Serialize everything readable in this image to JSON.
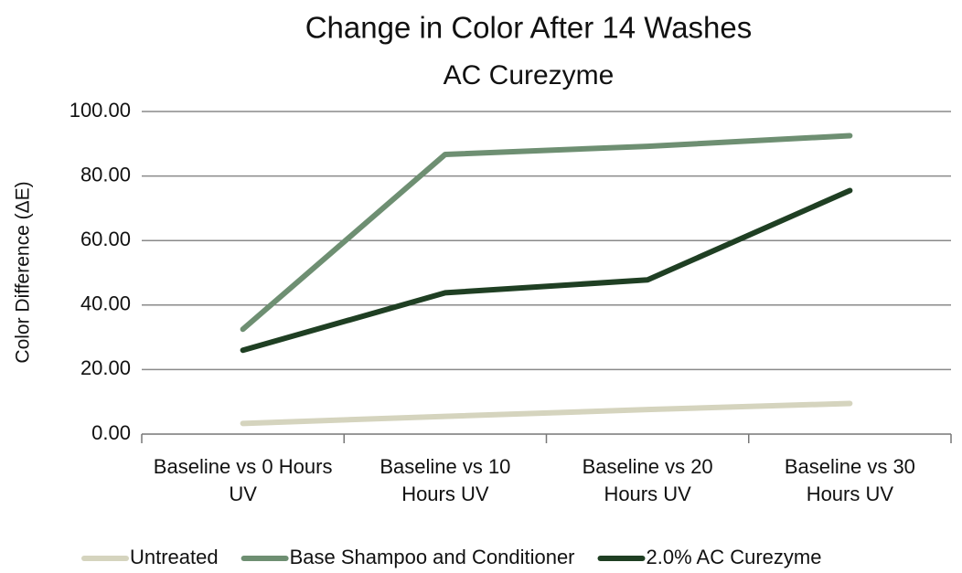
{
  "chart_data": {
    "type": "line",
    "title": "Change in Color After 14 Washes",
    "subtitle": "AC Curezyme",
    "y_label": "Color Difference (ΔE)",
    "categories": [
      "Baseline vs 0 Hours\nUV",
      "Baseline vs 10\nHours UV",
      "Baseline vs 20\nHours UV",
      "Baseline vs 30\nHours UV"
    ],
    "series": [
      {
        "name": "Untreated",
        "color": "#d5d4be",
        "values": [
          3.3,
          5.5,
          7.6,
          9.5
        ]
      },
      {
        "name": "Base Shampoo and Conditioner",
        "color": "#6e8f72",
        "values": [
          32.5,
          86.7,
          89.2,
          92.5
        ]
      },
      {
        "name": "2.0% AC Curezyme",
        "color": "#1f3f23",
        "values": [
          26.0,
          43.8,
          47.8,
          75.5
        ]
      }
    ],
    "ylim": [
      0,
      100
    ],
    "yticks": [
      {
        "value": 0,
        "label": "0.00"
      },
      {
        "value": 20,
        "label": "20.00"
      },
      {
        "value": 40,
        "label": "40.00"
      },
      {
        "value": 60,
        "label": "60.00"
      },
      {
        "value": 80,
        "label": "80.00"
      },
      {
        "value": 100,
        "label": "100.00"
      }
    ],
    "grid": true,
    "legend": "bottom"
  }
}
